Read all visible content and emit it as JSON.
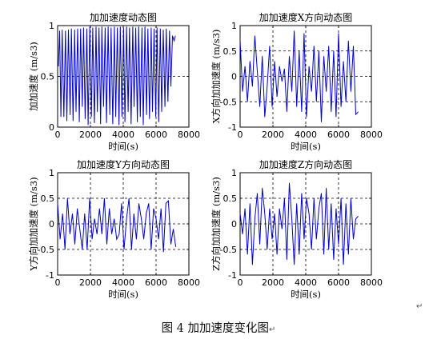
{
  "chart_data": [
    {
      "type": "line",
      "title": "加加速度动态图",
      "xlabel": "时间(s)",
      "ylabel": "加加速度 (m/s3)",
      "xlim": [
        0,
        8000
      ],
      "ylim": [
        0,
        1
      ],
      "xticks": [
        "0",
        "2000",
        "4000",
        "6000",
        "8000"
      ],
      "yticks": [
        "0",
        "0.5",
        "1"
      ],
      "grid": true,
      "color": "#0000cc",
      "series": [
        {
          "x": [
            50,
            120,
            200,
            280,
            380,
            480,
            560,
            660,
            760,
            840,
            940,
            1040,
            1120,
            1220,
            1320,
            1400,
            1500,
            1580,
            1680,
            1780,
            1860,
            1960,
            2060,
            2140,
            2240,
            2340,
            2420,
            2520,
            2620,
            2700,
            2800,
            2900,
            2980,
            3080,
            3180,
            3260,
            3360,
            3460,
            3540,
            3640,
            3740,
            3820,
            3920,
            4020,
            4100,
            4200,
            4300,
            4380,
            4480,
            4580,
            4660,
            4760,
            4860,
            4940,
            5040,
            5140,
            5220,
            5320,
            5420,
            5500,
            5600,
            5700,
            5780,
            5880,
            5980,
            6060,
            6160,
            6260,
            6340,
            6440,
            6540,
            6620,
            6720,
            6820,
            6900,
            7000,
            7100,
            7180
          ],
          "y": [
            0.6,
            0.95,
            0.1,
            0.96,
            0.1,
            0.95,
            0.06,
            0.96,
            0.12,
            0.97,
            0.06,
            0.96,
            0.15,
            0.97,
            0.05,
            0.97,
            0.2,
            0.98,
            0.08,
            0.97,
            0.02,
            0.99,
            0.1,
            0.98,
            0.04,
            0.99,
            0.15,
            0.98,
            0.03,
            0.99,
            0.2,
            0.98,
            0.04,
            0.99,
            0.12,
            0.98,
            0.03,
            0.99,
            0.1,
            0.98,
            0.02,
            0.99,
            0.1,
            0.98,
            0.05,
            0.99,
            0.15,
            0.98,
            0.03,
            0.99,
            0.2,
            0.98,
            0.05,
            0.99,
            0.1,
            0.98,
            0.02,
            0.99,
            0.12,
            0.97,
            0.08,
            0.98,
            0.15,
            0.97,
            0.1,
            0.98,
            0.05,
            0.97,
            0.15,
            0.96,
            0.2,
            0.97,
            0.25,
            0.95,
            0.4,
            0.9,
            0.85,
            0.9
          ]
        }
      ]
    },
    {
      "type": "line",
      "title": "加加速度X方向动态图",
      "xlabel": "时间(s)",
      "ylabel": "X方向加加速度 (m/s3)",
      "xlim": [
        0,
        8000
      ],
      "ylim": [
        -1,
        1
      ],
      "xticks": [
        "0",
        "2000",
        "4000",
        "6000",
        "8000"
      ],
      "yticks": [
        "-1",
        "-0.5",
        "0",
        "0.5",
        "1"
      ],
      "grid": true,
      "color": "#0000cc",
      "series": [
        {
          "x": [
            0,
            150,
            300,
            450,
            600,
            750,
            900,
            1050,
            1200,
            1350,
            1500,
            1650,
            1800,
            1950,
            2100,
            2250,
            2400,
            2550,
            2700,
            2850,
            3000,
            3150,
            3300,
            3450,
            3600,
            3750,
            3900,
            4050,
            4200,
            4350,
            4500,
            4650,
            4800,
            4950,
            5100,
            5250,
            5400,
            5550,
            5700,
            5850,
            6000,
            6150,
            6300,
            6450,
            6600,
            6750,
            6900,
            7050,
            7200
          ],
          "y": [
            0.7,
            -0.3,
            0.2,
            -0.5,
            0.3,
            -0.2,
            0.8,
            0.1,
            -0.6,
            0.4,
            -0.8,
            -0.2,
            0.6,
            -0.6,
            0.3,
            -0.4,
            0.2,
            -0.1,
            0.15,
            -0.7,
            0.4,
            -0.3,
            0.9,
            -0.6,
            0.5,
            -0.7,
            0.85,
            -0.8,
            0.2,
            -0.3,
            0.6,
            -0.5,
            0.5,
            -0.9,
            0.4,
            -0.3,
            0.6,
            -0.7,
            0.5,
            -0.8,
            0.85,
            -0.6,
            0.3,
            -0.5,
            0.7,
            -0.3,
            0.6,
            -0.75,
            -0.7
          ]
        }
      ]
    },
    {
      "type": "line",
      "title": "加加速度Y方向动态图",
      "xlabel": "时间(s)",
      "ylabel": "Y方向加加速度 (m/s3)",
      "xlim": [
        0,
        8000
      ],
      "ylim": [
        -1,
        1
      ],
      "xticks": [
        "0",
        "2000",
        "4000",
        "6000",
        "8000"
      ],
      "yticks": [
        "-1",
        "-0.5",
        "0",
        "0.5",
        "1"
      ],
      "grid": true,
      "color": "#0000cc",
      "series": [
        {
          "x": [
            0,
            150,
            300,
            450,
            600,
            750,
            900,
            1050,
            1200,
            1350,
            1500,
            1650,
            1800,
            1950,
            2100,
            2250,
            2400,
            2550,
            2700,
            2850,
            3000,
            3150,
            3300,
            3450,
            3600,
            3750,
            3900,
            4050,
            4200,
            4350,
            4500,
            4650,
            4800,
            4950,
            5100,
            5250,
            5400,
            5550,
            5700,
            5850,
            6000,
            6150,
            6300,
            6450,
            6600,
            6750,
            6900,
            7050,
            7200
          ],
          "y": [
            0.4,
            -0.3,
            0.2,
            -0.5,
            0.5,
            -0.2,
            0.2,
            -0.4,
            0.3,
            -0.1,
            -0.5,
            0.2,
            -0.5,
            0.5,
            -0.3,
            0.1,
            -0.2,
            0.3,
            -0.2,
            0.5,
            -0.4,
            0.3,
            -0.2,
            0.1,
            -0.3,
            -0.2,
            0.4,
            -0.5,
            0.1,
            0.5,
            -0.5,
            0.2,
            -0.3,
            0.4,
            0.1,
            -0.3,
            0.2,
            0.4,
            -0.5,
            0.3,
            0.1,
            -0.3,
            0.3,
            -0.55,
            0.4,
            0.45,
            -0.4,
            -0.1,
            -0.45
          ]
        }
      ]
    },
    {
      "type": "line",
      "title": "加加速度Z方向动态图",
      "xlabel": "时间(s)",
      "ylabel": "Z方向加加速度 (m/s3)",
      "xlim": [
        0,
        8000
      ],
      "ylim": [
        -1,
        1
      ],
      "xticks": [
        "0",
        "2000",
        "4000",
        "6000",
        "8000"
      ],
      "yticks": [
        "-1",
        "-0.5",
        "0",
        "0.5",
        "1"
      ],
      "grid": true,
      "color": "#0000cc",
      "series": [
        {
          "x": [
            0,
            150,
            300,
            450,
            600,
            750,
            900,
            1050,
            1200,
            1350,
            1500,
            1650,
            1800,
            1950,
            2100,
            2250,
            2400,
            2550,
            2700,
            2850,
            3000,
            3150,
            3300,
            3450,
            3600,
            3750,
            3900,
            4050,
            4200,
            4350,
            4500,
            4650,
            4800,
            4950,
            5100,
            5250,
            5400,
            5550,
            5700,
            5850,
            6000,
            6150,
            6300,
            6450,
            6600,
            6750,
            6900,
            7050,
            7200
          ],
          "y": [
            0.2,
            -0.2,
            0.3,
            -0.6,
            0.4,
            -0.8,
            0.1,
            0.6,
            -0.4,
            0.7,
            0.2,
            -0.5,
            0.3,
            -0.3,
            0.2,
            -0.6,
            0.3,
            -0.1,
            0.5,
            -0.7,
            0.8,
            0.1,
            -0.8,
            0.4,
            -0.6,
            0.6,
            -0.3,
            0.5,
            0.2,
            -0.5,
            0.5,
            -0.3,
            0.3,
            0.6,
            -0.6,
            0.7,
            -0.5,
            0.4,
            -0.7,
            0.3,
            -0.4,
            0.5,
            -0.8,
            0.4,
            -0.6,
            0.5,
            -0.3,
            0.1,
            0.15
          ]
        }
      ]
    }
  ],
  "figure": {
    "caption": "图 4   加加速度变化图",
    "enter_mark": "↵"
  }
}
